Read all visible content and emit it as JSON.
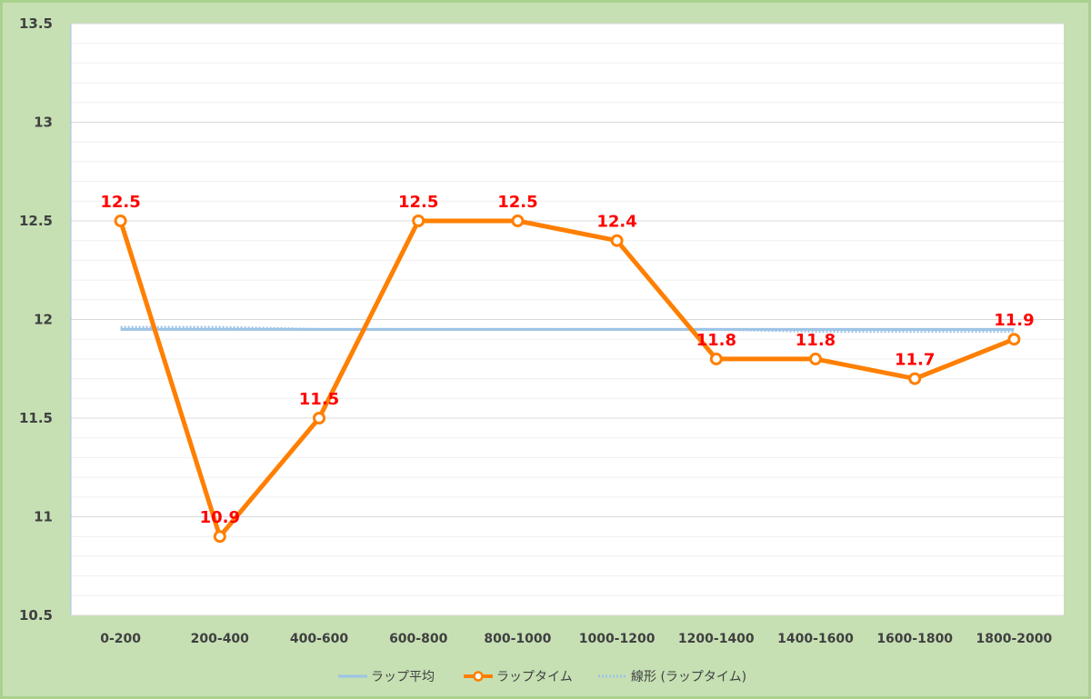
{
  "chart_data": {
    "type": "line",
    "categories": [
      "0-200",
      "200-400",
      "400-600",
      "600-800",
      "800-1000",
      "1000-1200",
      "1200-1400",
      "1400-1600",
      "1600-1800",
      "1800-2000"
    ],
    "series": [
      {
        "name": "ラップ平均",
        "values": [
          11.95,
          11.95,
          11.95,
          11.95,
          11.95,
          11.95,
          11.95,
          11.95,
          11.95,
          11.95
        ],
        "color": "#9dc3e6",
        "style": "solid"
      },
      {
        "name": "ラップタイム",
        "values": [
          12.5,
          10.9,
          11.5,
          12.5,
          12.5,
          12.4,
          11.8,
          11.8,
          11.7,
          11.9
        ],
        "color": "#ff7f00",
        "style": "line-marker",
        "data_labels": [
          "12.5",
          "10.9",
          "11.5",
          "12.5",
          "12.5",
          "12.4",
          "11.8",
          "11.8",
          "11.7",
          "11.9"
        ]
      },
      {
        "name": "線形 (ラップタイム)",
        "values": [
          11.96,
          11.96,
          11.95,
          11.95,
          11.95,
          11.95,
          11.95,
          11.94,
          11.94,
          11.94
        ],
        "color": "#9dc3e6",
        "style": "dotted"
      }
    ],
    "yticks": [
      "10.5",
      "11",
      "11.5",
      "12",
      "12.5",
      "13",
      "13.5"
    ],
    "ylim": [
      10.5,
      13.5
    ],
    "grid": true,
    "legend": "bottom"
  }
}
